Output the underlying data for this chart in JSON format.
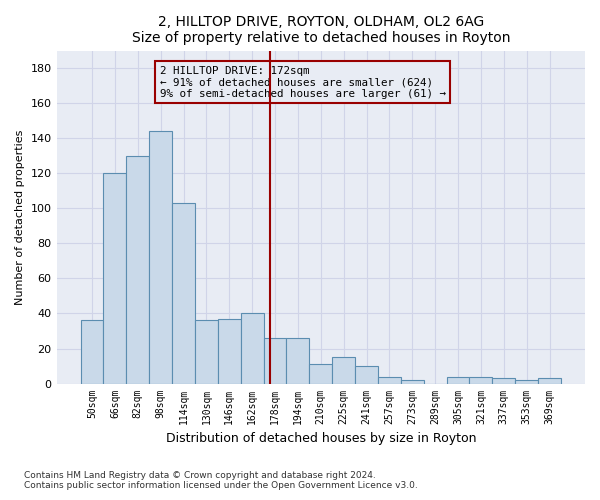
{
  "title": "2, HILLTOP DRIVE, ROYTON, OLDHAM, OL2 6AG",
  "subtitle": "Size of property relative to detached houses in Royton",
  "xlabel": "Distribution of detached houses by size in Royton",
  "ylabel": "Number of detached properties",
  "bar_values": [
    36,
    120,
    130,
    144,
    103,
    36,
    37,
    40,
    26,
    26,
    11,
    15,
    10,
    4,
    2,
    0,
    4,
    4,
    3,
    2,
    3
  ],
  "bar_labels": [
    "50sqm",
    "66sqm",
    "82sqm",
    "98sqm",
    "114sqm",
    "130sqm",
    "146sqm",
    "162sqm",
    "178sqm",
    "194sqm",
    "210sqm",
    "225sqm",
    "241sqm",
    "257sqm",
    "273sqm",
    "289sqm",
    "305sqm",
    "321sqm",
    "337sqm",
    "353sqm",
    "369sqm"
  ],
  "bar_color": "#c9d9e9",
  "bar_edgecolor": "#5b8db0",
  "ylim": [
    0,
    190
  ],
  "yticks": [
    0,
    20,
    40,
    60,
    80,
    100,
    120,
    140,
    160,
    180
  ],
  "grid_color": "#d0d4e8",
  "bg_color": "#e8ecf4",
  "plot_bg_color": "#e8ecf4",
  "vline_x": 7.78,
  "vline_color": "#990000",
  "annotation_line1": "2 HILLTOP DRIVE: 172sqm",
  "annotation_line2": "← 91% of detached houses are smaller (624)",
  "annotation_line3": "9% of semi-detached houses are larger (61) →",
  "annotation_box_edgecolor": "#990000",
  "footer": "Contains HM Land Registry data © Crown copyright and database right 2024.\nContains public sector information licensed under the Open Government Licence v3.0."
}
